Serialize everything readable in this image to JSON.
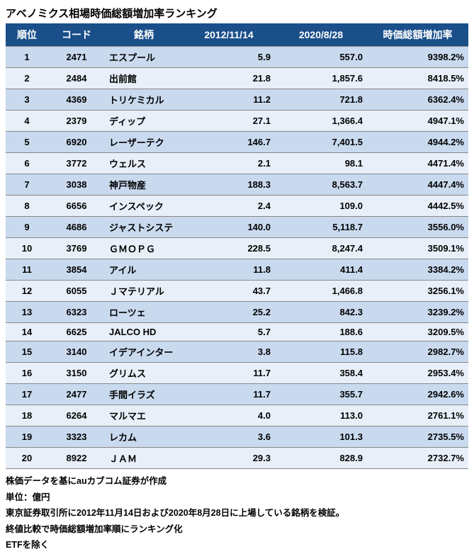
{
  "title": "アベノミクス相場時価総額増加率ランキング",
  "table": {
    "type": "table",
    "header_bg": "#1a4f8a",
    "header_fg": "#ffffff",
    "row_odd_bg": "#c9daef",
    "row_even_bg": "#e8eff8",
    "border_color": "#888888",
    "columns": [
      {
        "key": "rank",
        "label": "順位",
        "align": "center",
        "width": 60
      },
      {
        "key": "code",
        "label": "コード",
        "align": "center",
        "width": 80
      },
      {
        "key": "name",
        "label": "銘柄",
        "align": "left",
        "width": 110
      },
      {
        "key": "v1",
        "label": "2012/11/14",
        "align": "right",
        "width": 130
      },
      {
        "key": "v2",
        "label": "2020/8/28",
        "align": "right",
        "width": 130
      },
      {
        "key": "pct",
        "label": "時価総額増加率",
        "align": "right",
        "width": 143
      }
    ],
    "rows": [
      {
        "rank": "1",
        "code": "2471",
        "name": "エスプール",
        "v1": "5.9",
        "v2": "557.0",
        "pct": "9398.2%"
      },
      {
        "rank": "2",
        "code": "2484",
        "name": "出前館",
        "v1": "21.8",
        "v2": "1,857.6",
        "pct": "8418.5%"
      },
      {
        "rank": "3",
        "code": "4369",
        "name": "トリケミカル",
        "v1": "11.2",
        "v2": "721.8",
        "pct": "6362.4%"
      },
      {
        "rank": "4",
        "code": "2379",
        "name": "ディップ",
        "v1": "27.1",
        "v2": "1,366.4",
        "pct": "4947.1%"
      },
      {
        "rank": "5",
        "code": "6920",
        "name": "レーザーテク",
        "v1": "146.7",
        "v2": "7,401.5",
        "pct": "4944.2%"
      },
      {
        "rank": "6",
        "code": "3772",
        "name": "ウェルス",
        "v1": "2.1",
        "v2": "98.1",
        "pct": "4471.4%"
      },
      {
        "rank": "7",
        "code": "3038",
        "name": "神戸物産",
        "v1": "188.3",
        "v2": "8,563.7",
        "pct": "4447.4%"
      },
      {
        "rank": "8",
        "code": "6656",
        "name": "インスペック",
        "v1": "2.4",
        "v2": "109.0",
        "pct": "4442.5%"
      },
      {
        "rank": "9",
        "code": "4686",
        "name": "ジャストシステ",
        "v1": "140.0",
        "v2": "5,118.7",
        "pct": "3556.0%"
      },
      {
        "rank": "10",
        "code": "3769",
        "name": "ＧＭＯＰＧ",
        "v1": "228.5",
        "v2": "8,247.4",
        "pct": "3509.1%"
      },
      {
        "rank": "11",
        "code": "3854",
        "name": "アイル",
        "v1": "11.8",
        "v2": "411.4",
        "pct": "3384.2%"
      },
      {
        "rank": "12",
        "code": "6055",
        "name": "Ｊマテリアル",
        "v1": "43.7",
        "v2": "1,466.8",
        "pct": "3256.1%"
      },
      {
        "rank": "13",
        "code": "6323",
        "name": "ローツェ",
        "v1": "25.2",
        "v2": "842.3",
        "pct": "3239.2%"
      },
      {
        "rank": "14",
        "code": "6625",
        "name": "JALCO HD",
        "v1": "5.7",
        "v2": "188.6",
        "pct": "3209.5%"
      },
      {
        "rank": "15",
        "code": "3140",
        "name": "イデアインター",
        "v1": "3.8",
        "v2": "115.8",
        "pct": "2982.7%"
      },
      {
        "rank": "16",
        "code": "3150",
        "name": "グリムス",
        "v1": "11.7",
        "v2": "358.4",
        "pct": "2953.4%"
      },
      {
        "rank": "17",
        "code": "2477",
        "name": "手間イラズ",
        "v1": "11.7",
        "v2": "355.7",
        "pct": "2942.6%"
      },
      {
        "rank": "18",
        "code": "6264",
        "name": "マルマエ",
        "v1": "4.0",
        "v2": "113.0",
        "pct": "2761.1%"
      },
      {
        "rank": "19",
        "code": "3323",
        "name": "レカム",
        "v1": "3.6",
        "v2": "101.3",
        "pct": "2735.5%"
      },
      {
        "rank": "20",
        "code": "8922",
        "name": "ＪＡＭ",
        "v1": "29.3",
        "v2": "828.9",
        "pct": "2732.7%"
      }
    ]
  },
  "notes": [
    "株価データを基にauカブコム証券が作成",
    "単位：億円",
    "東京証券取引所に2012年11月14日および2020年8月28日に上場している銘柄を検証。",
    "終値比較で時価総額増加率順にランキング化",
    "ETFを除く"
  ]
}
